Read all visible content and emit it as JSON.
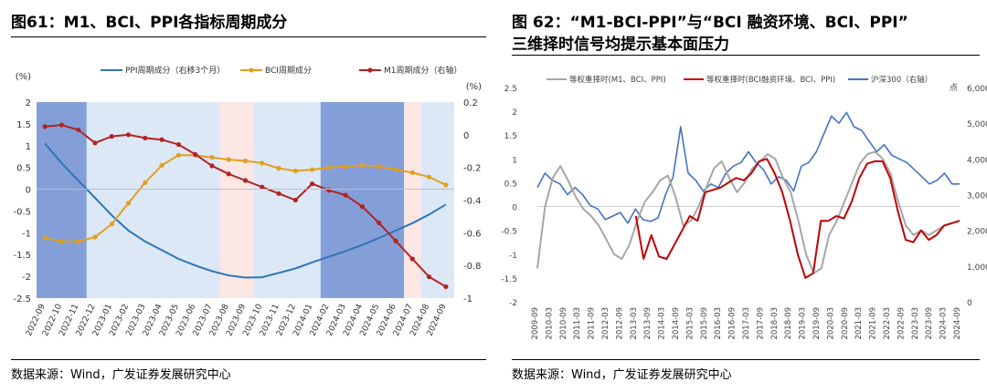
{
  "left": {
    "title": "图61：M1、BCI、PPI各指标周期成分",
    "source": "数据来源：Wind，广发证券发展研究中心",
    "colors": {
      "ppi": "#2E75B6",
      "bci": "#E0A020",
      "m1": "#B22222",
      "shade_dark": "#5B7FCB",
      "shade_light": "#D6E4F5",
      "shade_pink": "#FBE3E1"
    },
    "chart_data": {
      "type": "line",
      "y_left_unit": "(%)",
      "y_right_unit": "(%)",
      "categories": [
        "2022-09",
        "2022-10",
        "2022-11",
        "2022-12",
        "2023-01",
        "2023-02",
        "2023-03",
        "2023-04",
        "2023-05",
        "2023-06",
        "2023-07",
        "2023-08",
        "2023-09",
        "2023-10",
        "2023-11",
        "2023-12",
        "2024-01",
        "2024-02",
        "2024-03",
        "2024-04",
        "2024-05",
        "2024-06",
        "2024-07",
        "2024-08",
        "2024-09"
      ],
      "ylim_left": [
        -2.5,
        2
      ],
      "yticks_left": [
        2,
        1.5,
        1,
        0.5,
        0,
        -0.5,
        -1,
        -1.5,
        -2,
        -2.5
      ],
      "ylim_right": [
        -1,
        0.2
      ],
      "yticks_right": [
        0.2,
        0,
        -0.2,
        -0.4,
        -0.6,
        -0.8,
        -1
      ],
      "series": [
        {
          "name": "PPI周期成分（右移3个月）",
          "axis": "left",
          "marker": "none",
          "values": [
            1.05,
            0.6,
            0.2,
            -0.2,
            -0.6,
            -0.95,
            -1.2,
            -1.4,
            -1.6,
            -1.75,
            -1.88,
            -1.98,
            -2.03,
            -2.02,
            -1.92,
            -1.82,
            -1.68,
            -1.55,
            -1.42,
            -1.28,
            -1.12,
            -0.95,
            -0.78,
            -0.58,
            -0.35
          ]
        },
        {
          "name": "BCI周期成分",
          "axis": "left",
          "marker": "circle",
          "values": [
            -1.12,
            -1.2,
            -1.2,
            -1.1,
            -0.8,
            -0.32,
            0.15,
            0.55,
            0.78,
            0.78,
            0.73,
            0.68,
            0.65,
            0.6,
            0.48,
            0.42,
            0.45,
            0.5,
            0.52,
            0.55,
            0.52,
            0.45,
            0.38,
            0.28,
            0.1
          ]
        },
        {
          "name": "M1周期成分（右轴）",
          "axis": "right",
          "marker": "circle",
          "values": [
            0.05,
            0.06,
            0.03,
            -0.05,
            -0.01,
            0.0,
            -0.02,
            -0.03,
            -0.06,
            -0.12,
            -0.19,
            -0.24,
            -0.28,
            -0.32,
            -0.36,
            -0.4,
            -0.3,
            -0.34,
            -0.37,
            -0.44,
            -0.54,
            -0.65,
            -0.76,
            -0.87,
            -0.93
          ]
        }
      ],
      "shaded_periods": [
        {
          "from": "2022-09",
          "to": "2022-11",
          "tone": "dark"
        },
        {
          "from": "2022-12",
          "to": "2023-07",
          "tone": "light"
        },
        {
          "from": "2023-08",
          "to": "2023-09",
          "tone": "pink"
        },
        {
          "from": "2023-10",
          "to": "2024-01",
          "tone": "light"
        },
        {
          "from": "2024-02",
          "to": "2024-06",
          "tone": "dark"
        },
        {
          "from": "2024-07",
          "to": "2024-07",
          "tone": "pink"
        },
        {
          "from": "2024-08",
          "to": "2024-09",
          "tone": "light"
        }
      ]
    }
  },
  "right": {
    "title_line1": "图 62：“M1-BCI-PPI”与“BCI 融资环境、BCI、PPI”",
    "title_line2": "三维择时信号均提示基本面压力",
    "source": "数据来源：Wind，广发证券发展研究中心",
    "colors": {
      "equal": "#A6A6A6",
      "bcifin": "#C00000",
      "hs300": "#4472C4"
    },
    "chart_data": {
      "type": "line",
      "y_right_unit": "点",
      "ylim_left": [
        -2,
        2.5
      ],
      "yticks_left": [
        2.5,
        2,
        1.5,
        1,
        0.5,
        0,
        -0.5,
        -1,
        -1.5,
        -2
      ],
      "ylim_right": [
        0,
        6000
      ],
      "yticks_right": [
        6000,
        5000,
        4000,
        3000,
        2000,
        1000,
        0
      ],
      "ytick_labels_right": [
        "6,000",
        "5,000",
        "4,000",
        "3,000",
        "2,000",
        "1,000",
        "0"
      ],
      "x_labels": [
        "2009-09",
        "2010-03",
        "2010-09",
        "2011-03",
        "2011-09",
        "2012-03",
        "2012-09",
        "2013-03",
        "2013-09",
        "2014-03",
        "2014-09",
        "2015-03",
        "2015-09",
        "2016-03",
        "2016-09",
        "2017-03",
        "2017-09",
        "2018-03",
        "2018-09",
        "2019-03",
        "2019-09",
        "2020-03",
        "2020-09",
        "2021-03",
        "2021-09",
        "2022-03",
        "2022-09",
        "2023-03",
        "2023-09",
        "2024-03",
        "2024-09"
      ],
      "series": [
        {
          "name": "等权重择时(M1、BCI、PPI)",
          "axis": "left",
          "x_start": "2009-09",
          "values": [
            -1.3,
            0.0,
            0.6,
            0.85,
            0.55,
            0.2,
            -0.05,
            -0.2,
            -0.4,
            -0.7,
            -1.0,
            -1.1,
            -0.8,
            -0.3,
            0.1,
            0.3,
            0.55,
            0.65,
            0.2,
            -0.4,
            -0.3,
            0.0,
            0.4,
            0.8,
            0.95,
            0.6,
            0.3,
            0.5,
            0.8,
            0.95,
            1.1,
            1.0,
            0.6,
            0.3,
            -0.3,
            -1.0,
            -1.4,
            -1.3,
            -0.6,
            -0.3,
            0.1,
            0.5,
            0.9,
            1.1,
            1.15,
            1.0,
            0.7,
            0.1,
            -0.4,
            -0.6,
            -0.5,
            -0.6,
            -0.5,
            -0.4,
            -0.35,
            -0.3
          ]
        },
        {
          "name": "等权重择时(BCI融资环境、BCI、PPI)",
          "axis": "left",
          "x_start": "2013-03",
          "values": [
            -0.2,
            -1.1,
            -0.6,
            -1.05,
            -1.1,
            -0.8,
            -0.5,
            -0.2,
            -0.3,
            0.3,
            0.35,
            0.4,
            0.5,
            0.6,
            0.55,
            0.7,
            0.95,
            1.0,
            0.7,
            0.3,
            -0.3,
            -1.0,
            -1.5,
            -1.4,
            -0.3,
            -0.3,
            -0.2,
            -0.25,
            0.1,
            0.6,
            0.9,
            0.95,
            0.95,
            0.6,
            -0.1,
            -0.7,
            -0.75,
            -0.5,
            -0.7,
            -0.6,
            -0.4,
            -0.35,
            -0.3
          ]
        },
        {
          "name": "沪深300（右轴）",
          "axis": "right",
          "x_start": "2009-09",
          "values": [
            3200,
            3600,
            3400,
            3300,
            3000,
            3200,
            3000,
            2700,
            2600,
            2300,
            2400,
            2500,
            2200,
            2600,
            2300,
            2250,
            2350,
            3000,
            3500,
            4900,
            3600,
            3400,
            3100,
            3300,
            3200,
            3600,
            3800,
            3900,
            4200,
            3900,
            3700,
            3300,
            3500,
            3400,
            3100,
            3800,
            3900,
            4200,
            4700,
            5200,
            5000,
            5300,
            4900,
            4800,
            4500,
            4200,
            4400,
            4100,
            4000,
            3900,
            3700,
            3500,
            3300,
            3400,
            3600,
            3300,
            3300
          ]
        }
      ]
    }
  }
}
